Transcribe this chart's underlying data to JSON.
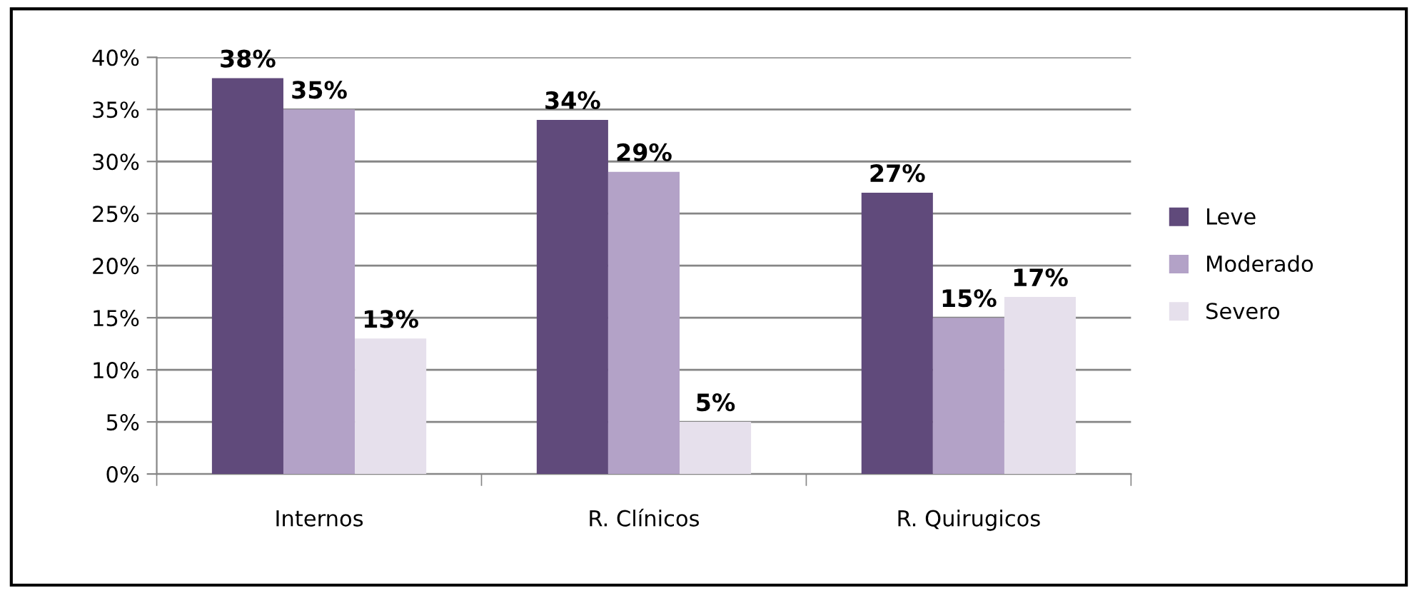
{
  "chart_data": {
    "type": "bar",
    "categories": [
      "Internos",
      "R. Clínicos",
      "R. Quirugicos"
    ],
    "series": [
      {
        "name": "Leve",
        "color": "#604a7b",
        "values": [
          38,
          34,
          27
        ],
        "value_labels": [
          "38%",
          "34%",
          "27%"
        ]
      },
      {
        "name": "Moderado",
        "color": "#b3a2c7",
        "values": [
          35,
          29,
          15
        ],
        "value_labels": [
          "35%",
          "29%",
          "15%"
        ]
      },
      {
        "name": "Severo",
        "color": "#e6e0ec",
        "values": [
          13,
          5,
          17
        ],
        "value_labels": [
          "13%",
          "5%",
          "17%"
        ]
      }
    ],
    "ylim": [
      0,
      40
    ],
    "yticks": [
      {
        "value": 0,
        "label": "0%"
      },
      {
        "value": 5,
        "label": "5%"
      },
      {
        "value": 10,
        "label": "10%"
      },
      {
        "value": 15,
        "label": "15%"
      },
      {
        "value": 20,
        "label": "20%"
      },
      {
        "value": 25,
        "label": "25%"
      },
      {
        "value": 30,
        "label": "30%"
      },
      {
        "value": 35,
        "label": "35%"
      },
      {
        "value": 40,
        "label": "40%"
      }
    ],
    "grid": "y",
    "legend": "right"
  }
}
